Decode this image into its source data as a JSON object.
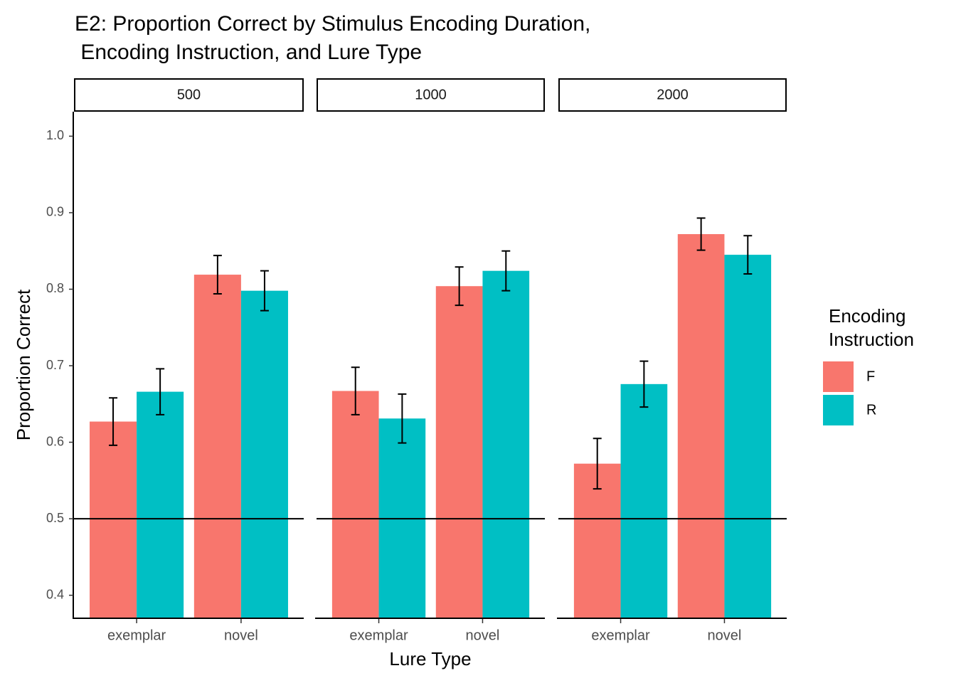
{
  "chart_data": {
    "type": "bar",
    "title": "E2: Proportion Correct by Stimulus Encoding Duration,\n Encoding Instruction, and Lure Type",
    "x_label": "Lure Type",
    "y_label": "Proportion Correct",
    "legend_title": "Encoding\nInstruction",
    "facets": [
      "500",
      "1000",
      "2000"
    ],
    "categories": [
      "exemplar",
      "novel"
    ],
    "series": [
      {
        "name": "F",
        "color": "#F8766D",
        "values": [
          [
            0.627,
            0.819
          ],
          [
            0.667,
            0.804
          ],
          [
            0.572,
            0.872
          ]
        ],
        "errors": [
          [
            0.031,
            0.025
          ],
          [
            0.031,
            0.025
          ],
          [
            0.033,
            0.021
          ]
        ]
      },
      {
        "name": "R",
        "color": "#00BFC4",
        "values": [
          [
            0.666,
            0.798
          ],
          [
            0.631,
            0.824
          ],
          [
            0.676,
            0.845
          ]
        ],
        "errors": [
          [
            0.03,
            0.026
          ],
          [
            0.032,
            0.026
          ],
          [
            0.03,
            0.025
          ]
        ]
      }
    ],
    "hline": 0.5,
    "ylim": [
      0.369,
      1.032
    ],
    "yticks": [
      {
        "value": 0.4,
        "label": "0.4"
      },
      {
        "value": 0.5,
        "label": "0.5"
      },
      {
        "value": 0.6,
        "label": "0.6"
      },
      {
        "value": 0.7,
        "label": "0.7"
      },
      {
        "value": 0.8,
        "label": "0.8"
      },
      {
        "value": 0.9,
        "label": "0.9"
      },
      {
        "value": 1.0,
        "label": "1.0"
      }
    ],
    "grid": false
  }
}
